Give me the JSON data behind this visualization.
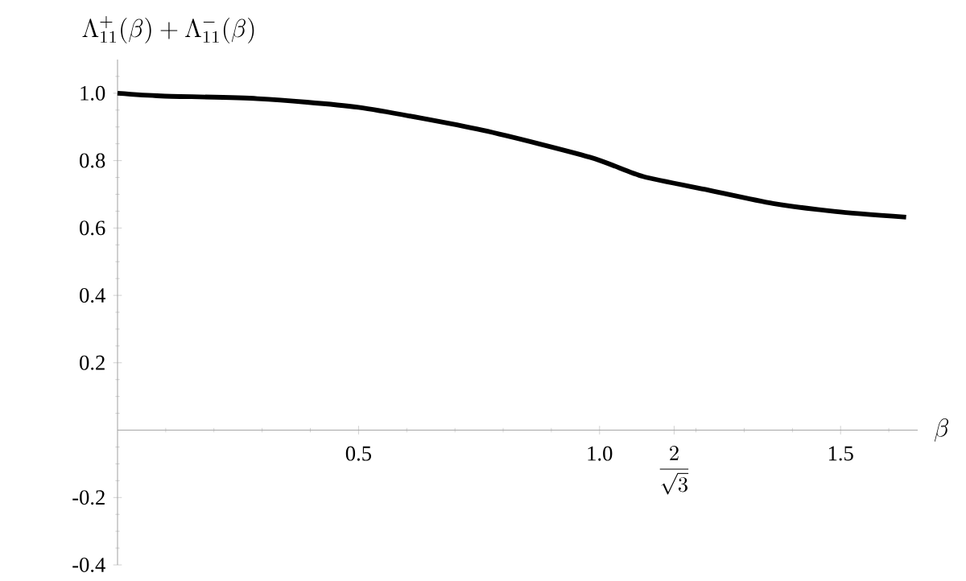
{
  "chart_data": {
    "type": "line",
    "xlabel": "\\beta",
    "ylabel": "\\Lambda_{11}^{+}(\\beta)+\\Lambda_{11}^{-}(\\beta)",
    "x": [
      0,
      0.09,
      0.29,
      0.5,
      0.758,
      0.98,
      1.09,
      1.225,
      1.36,
      1.49,
      1.636
    ],
    "values": [
      1.0,
      0.992,
      0.984,
      0.958,
      0.89,
      0.81,
      0.753,
      0.713,
      0.673,
      0.649,
      0.632
    ],
    "color": "#000000",
    "xlim": [
      0,
      1.66
    ],
    "ylim": [
      -0.4,
      1.1
    ],
    "xticks": [
      0.5,
      {
        "value": 1,
        "label": "1.0"
      },
      {
        "value": 1.1547,
        "label": "\\frac{2}{\\sqrt{3}}"
      },
      1.5
    ],
    "yticks": [
      -0.4,
      -0.2,
      0.2,
      0.4,
      0.6,
      0.8,
      {
        "value": 1,
        "label": "1.0"
      }
    ],
    "grid": false,
    "marker": "none",
    "line_style": "solid"
  }
}
